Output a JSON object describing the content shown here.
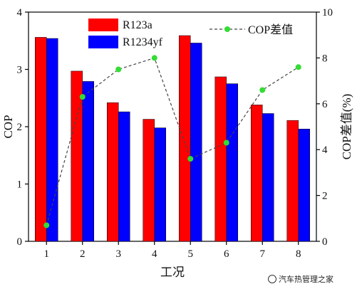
{
  "chart_data": {
    "type": "bar",
    "categories": [
      "1",
      "2",
      "3",
      "4",
      "5",
      "6",
      "7",
      "8"
    ],
    "series": [
      {
        "name": "R123a",
        "color": "#ff0000",
        "values": [
          3.56,
          2.97,
          2.42,
          2.13,
          3.59,
          2.87,
          2.38,
          2.11
        ]
      },
      {
        "name": "R1234yf",
        "color": "#0000ff",
        "values": [
          3.54,
          2.79,
          2.26,
          1.98,
          3.46,
          2.75,
          2.23,
          1.96
        ]
      }
    ],
    "line_series": {
      "name": "COP差值",
      "color": "#33dd33",
      "axis": "right",
      "values": [
        0.7,
        6.3,
        7.5,
        8.0,
        3.6,
        4.3,
        6.6,
        7.6
      ]
    },
    "xlabel": "工况",
    "ylabel": "COP",
    "ylabel_right": "COP差值(%)",
    "ylim": [
      0,
      4
    ],
    "ylim_right": [
      0,
      10
    ],
    "yticks": [
      0,
      1,
      2,
      3,
      4
    ],
    "yticks_right": [
      0,
      2,
      4,
      6,
      8,
      10
    ],
    "grid": false,
    "legend_placement": "top"
  },
  "watermark": {
    "text": "汽车热管理之家",
    "icon": "wechat-icon"
  }
}
